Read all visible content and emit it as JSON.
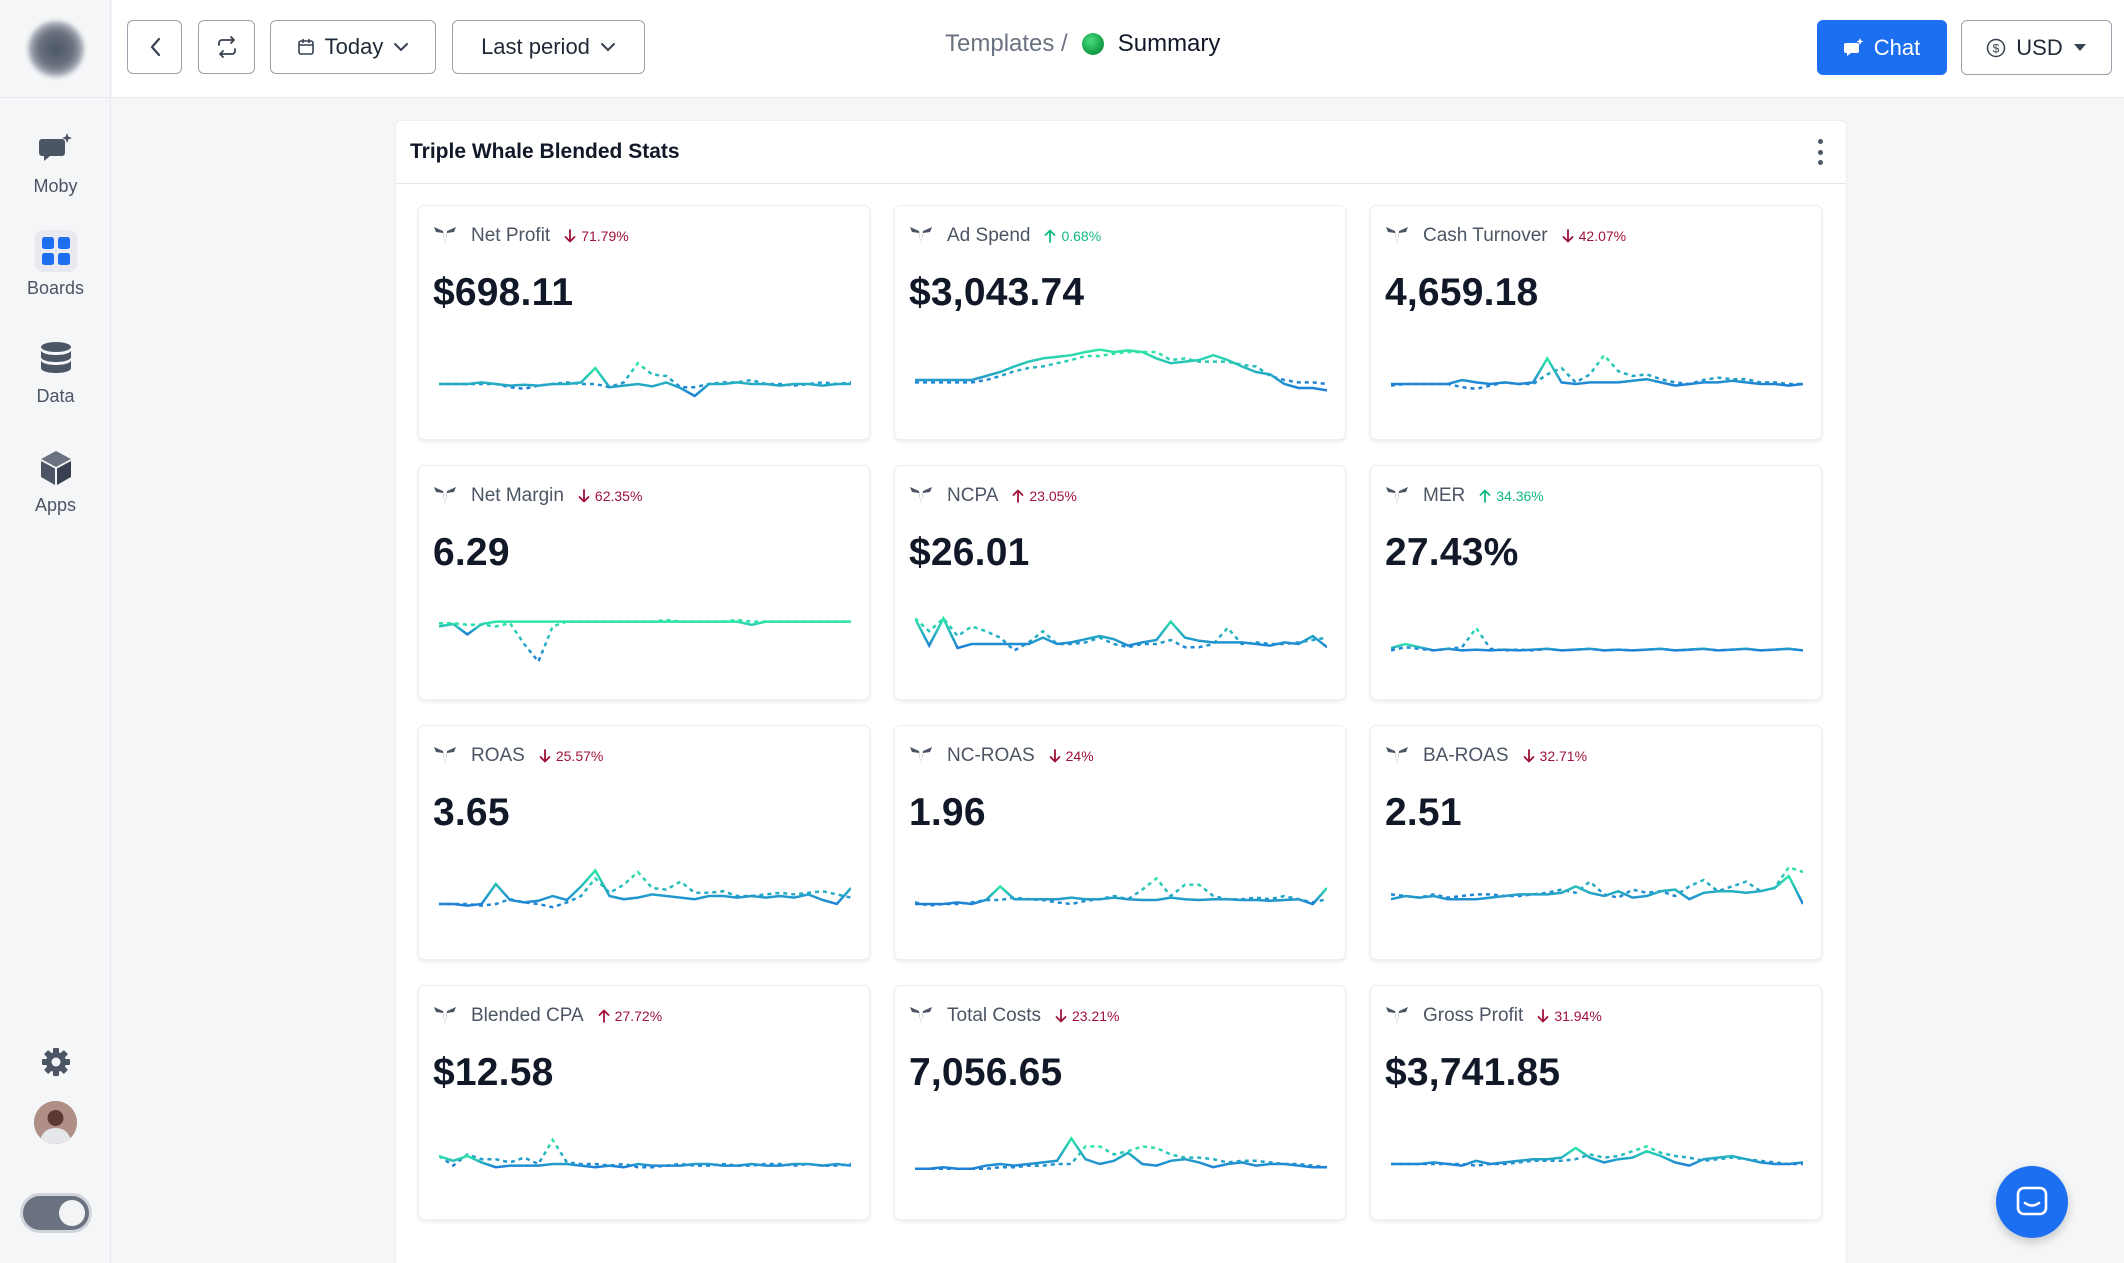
{
  "sidebar": {
    "items": [
      {
        "label": "Moby",
        "icon": "chat-sparkle-icon"
      },
      {
        "label": "Boards",
        "icon": "grid-icon"
      },
      {
        "label": "Data",
        "icon": "database-icon"
      },
      {
        "label": "Apps",
        "icon": "cube-icon"
      }
    ],
    "settings_icon": "gear-icon",
    "avatar_icon": "user-avatar"
  },
  "topbar": {
    "date_label": "Today",
    "period_label": "Last period",
    "breadcrumb_parent": "Templates /",
    "breadcrumb_current": "Summary",
    "chat_label": "Chat",
    "currency_label": "USD"
  },
  "panel": {
    "title": "Triple Whale Blended Stats"
  },
  "cards": [
    {
      "label": "Net Profit",
      "delta": "71.79%",
      "direction": "down",
      "tone": "bad",
      "value": "$698.11"
    },
    {
      "label": "Ad Spend",
      "delta": "0.68%",
      "direction": "up",
      "tone": "good",
      "value": "$3,043.74"
    },
    {
      "label": "Cash Turnover",
      "delta": "42.07%",
      "direction": "down",
      "tone": "bad",
      "value": "4,659.18"
    },
    {
      "label": "Net Margin",
      "delta": "62.35%",
      "direction": "down",
      "tone": "bad",
      "value": "6.29"
    },
    {
      "label": "NCPA",
      "delta": "23.05%",
      "direction": "up",
      "tone": "bad",
      "value": "$26.01"
    },
    {
      "label": "MER",
      "delta": "34.36%",
      "direction": "up",
      "tone": "good",
      "value": "27.43%"
    },
    {
      "label": "ROAS",
      "delta": "25.57%",
      "direction": "down",
      "tone": "bad",
      "value": "3.65"
    },
    {
      "label": "NC-ROAS",
      "delta": "24%",
      "direction": "down",
      "tone": "bad",
      "value": "1.96"
    },
    {
      "label": "BA-ROAS",
      "delta": "32.71%",
      "direction": "down",
      "tone": "bad",
      "value": "2.51"
    },
    {
      "label": "Blended CPA",
      "delta": "27.72%",
      "direction": "up",
      "tone": "bad",
      "value": "$12.58"
    },
    {
      "label": "Total Costs",
      "delta": "23.21%",
      "direction": "down",
      "tone": "bad",
      "value": "7,056.65"
    },
    {
      "label": "Gross Profit",
      "delta": "31.94%",
      "direction": "down",
      "tone": "bad",
      "value": "$3,741.85"
    }
  ],
  "colors": {
    "accent": "#1d6ff2",
    "spark_start": "#2ee6a6",
    "spark_end": "#1e7fd8",
    "delta_bad": "#9f1239",
    "delta_good": "#10b981"
  },
  "sparklines": [
    {
      "current": [
        0.5,
        0.5,
        0.5,
        0.52,
        0.5,
        0.48,
        0.49,
        0.48,
        0.5,
        0.5,
        0.52,
        0.7,
        0.46,
        0.48,
        0.5,
        0.47,
        0.52,
        0.45,
        0.35,
        0.5,
        0.5,
        0.52,
        0.5,
        0.5,
        0.48,
        0.5,
        0.5,
        0.48,
        0.5,
        0.5
      ],
      "previous": [
        0.5,
        0.5,
        0.5,
        0.5,
        0.5,
        0.46,
        0.44,
        0.48,
        0.5,
        0.52,
        0.5,
        0.5,
        0.46,
        0.52,
        0.76,
        0.62,
        0.6,
        0.46,
        0.46,
        0.5,
        0.52,
        0.52,
        0.55,
        0.5,
        0.5,
        0.48,
        0.5,
        0.52,
        0.5,
        0.52
      ]
    },
    {
      "current": [
        0.55,
        0.55,
        0.55,
        0.55,
        0.55,
        0.6,
        0.65,
        0.72,
        0.78,
        0.82,
        0.84,
        0.86,
        0.9,
        0.93,
        0.9,
        0.92,
        0.9,
        0.82,
        0.76,
        0.78,
        0.8,
        0.86,
        0.8,
        0.72,
        0.65,
        0.62,
        0.5,
        0.45,
        0.45,
        0.42
      ],
      "previous": [
        0.52,
        0.52,
        0.52,
        0.52,
        0.52,
        0.55,
        0.6,
        0.66,
        0.7,
        0.72,
        0.76,
        0.8,
        0.85,
        0.85,
        0.88,
        0.9,
        0.9,
        0.9,
        0.8,
        0.82,
        0.78,
        0.78,
        0.78,
        0.74,
        0.72,
        0.6,
        0.55,
        0.52,
        0.52,
        0.5
      ]
    },
    {
      "current": [
        0.5,
        0.5,
        0.5,
        0.5,
        0.5,
        0.55,
        0.52,
        0.5,
        0.52,
        0.5,
        0.52,
        0.82,
        0.52,
        0.5,
        0.52,
        0.52,
        0.52,
        0.54,
        0.56,
        0.52,
        0.48,
        0.5,
        0.52,
        0.52,
        0.54,
        0.52,
        0.5,
        0.5,
        0.48,
        0.5
      ],
      "previous": [
        0.48,
        0.5,
        0.5,
        0.5,
        0.5,
        0.46,
        0.44,
        0.48,
        0.52,
        0.5,
        0.5,
        0.62,
        0.7,
        0.52,
        0.62,
        0.86,
        0.66,
        0.6,
        0.62,
        0.56,
        0.52,
        0.5,
        0.55,
        0.58,
        0.56,
        0.56,
        0.52,
        0.52,
        0.5,
        0.5
      ]
    },
    {
      "current": [
        0.72,
        0.75,
        0.62,
        0.75,
        0.78,
        0.78,
        0.78,
        0.78,
        0.78,
        0.78,
        0.78,
        0.78,
        0.78,
        0.78,
        0.78,
        0.78,
        0.78,
        0.78,
        0.78,
        0.78,
        0.78,
        0.78,
        0.74,
        0.78,
        0.78,
        0.78,
        0.78,
        0.78,
        0.78,
        0.78
      ],
      "previous": [
        0.76,
        0.76,
        0.74,
        0.74,
        0.72,
        0.76,
        0.5,
        0.28,
        0.72,
        0.78,
        0.78,
        0.78,
        0.78,
        0.78,
        0.78,
        0.78,
        0.8,
        0.78,
        0.78,
        0.78,
        0.78,
        0.8,
        0.78,
        0.78,
        0.78,
        0.78,
        0.78,
        0.78,
        0.78,
        0.78
      ]
    },
    {
      "current": [
        0.82,
        0.48,
        0.82,
        0.45,
        0.5,
        0.5,
        0.5,
        0.5,
        0.5,
        0.58,
        0.5,
        0.52,
        0.56,
        0.6,
        0.56,
        0.48,
        0.52,
        0.55,
        0.78,
        0.58,
        0.54,
        0.52,
        0.52,
        0.52,
        0.5,
        0.48,
        0.52,
        0.5,
        0.6,
        0.46
      ],
      "previous": [
        0.82,
        0.66,
        0.82,
        0.6,
        0.72,
        0.66,
        0.58,
        0.42,
        0.52,
        0.66,
        0.5,
        0.5,
        0.52,
        0.58,
        0.5,
        0.46,
        0.5,
        0.5,
        0.55,
        0.46,
        0.46,
        0.5,
        0.7,
        0.5,
        0.52,
        0.5,
        0.5,
        0.52,
        0.55,
        0.58
      ]
    },
    {
      "current": [
        0.45,
        0.5,
        0.46,
        0.42,
        0.44,
        0.42,
        0.43,
        0.42,
        0.43,
        0.42,
        0.43,
        0.44,
        0.42,
        0.43,
        0.44,
        0.42,
        0.43,
        0.42,
        0.43,
        0.44,
        0.42,
        0.43,
        0.44,
        0.42,
        0.43,
        0.44,
        0.42,
        0.43,
        0.44,
        0.42
      ],
      "previous": [
        0.42,
        0.46,
        0.44,
        0.42,
        0.44,
        0.46,
        0.7,
        0.44,
        0.42,
        0.43,
        0.42,
        0.44,
        0.42,
        0.43,
        0.44,
        0.42,
        0.43,
        0.42,
        0.43,
        0.44,
        0.42,
        0.43,
        0.44,
        0.42,
        0.43,
        0.44,
        0.42,
        0.43,
        0.44,
        0.42
      ]
    },
    {
      "current": [
        0.5,
        0.5,
        0.48,
        0.5,
        0.75,
        0.55,
        0.52,
        0.54,
        0.6,
        0.55,
        0.72,
        0.92,
        0.6,
        0.56,
        0.58,
        0.62,
        0.6,
        0.58,
        0.56,
        0.6,
        0.6,
        0.58,
        0.6,
        0.58,
        0.6,
        0.58,
        0.62,
        0.55,
        0.5,
        0.7
      ],
      "previous": [
        0.5,
        0.5,
        0.5,
        0.48,
        0.5,
        0.56,
        0.52,
        0.5,
        0.46,
        0.52,
        0.6,
        0.82,
        0.64,
        0.74,
        0.9,
        0.7,
        0.68,
        0.78,
        0.64,
        0.64,
        0.66,
        0.6,
        0.6,
        0.62,
        0.64,
        0.62,
        0.64,
        0.66,
        0.62,
        0.58
      ]
    },
    {
      "current": [
        0.5,
        0.5,
        0.5,
        0.52,
        0.5,
        0.55,
        0.72,
        0.56,
        0.56,
        0.56,
        0.56,
        0.58,
        0.56,
        0.56,
        0.58,
        0.56,
        0.55,
        0.55,
        0.58,
        0.56,
        0.55,
        0.56,
        0.56,
        0.55,
        0.55,
        0.54,
        0.55,
        0.56,
        0.5,
        0.7
      ],
      "previous": [
        0.52,
        0.48,
        0.5,
        0.5,
        0.52,
        0.55,
        0.55,
        0.58,
        0.56,
        0.55,
        0.52,
        0.5,
        0.54,
        0.56,
        0.6,
        0.56,
        0.68,
        0.82,
        0.6,
        0.74,
        0.74,
        0.6,
        0.56,
        0.56,
        0.58,
        0.56,
        0.6,
        0.56,
        0.52,
        0.56
      ]
    },
    {
      "current": [
        0.56,
        0.6,
        0.58,
        0.6,
        0.56,
        0.56,
        0.56,
        0.58,
        0.6,
        0.62,
        0.62,
        0.62,
        0.64,
        0.72,
        0.64,
        0.6,
        0.66,
        0.58,
        0.6,
        0.66,
        0.68,
        0.56,
        0.64,
        0.66,
        0.66,
        0.64,
        0.66,
        0.7,
        0.85,
        0.5
      ],
      "previous": [
        0.62,
        0.6,
        0.58,
        0.62,
        0.58,
        0.6,
        0.62,
        0.62,
        0.6,
        0.6,
        0.62,
        0.64,
        0.68,
        0.64,
        0.78,
        0.62,
        0.58,
        0.68,
        0.64,
        0.66,
        0.6,
        0.72,
        0.8,
        0.66,
        0.72,
        0.78,
        0.66,
        0.7,
        0.96,
        0.9
      ]
    },
    {
      "current": [
        0.6,
        0.54,
        0.6,
        0.52,
        0.46,
        0.48,
        0.48,
        0.48,
        0.5,
        0.5,
        0.48,
        0.46,
        0.48,
        0.46,
        0.5,
        0.48,
        0.48,
        0.48,
        0.5,
        0.5,
        0.48,
        0.48,
        0.5,
        0.48,
        0.48,
        0.5,
        0.5,
        0.48,
        0.5,
        0.48
      ],
      "previous": [
        0.6,
        0.48,
        0.62,
        0.56,
        0.56,
        0.52,
        0.58,
        0.5,
        0.8,
        0.52,
        0.5,
        0.5,
        0.48,
        0.5,
        0.46,
        0.46,
        0.48,
        0.5,
        0.48,
        0.48,
        0.5,
        0.48,
        0.48,
        0.5,
        0.5,
        0.48,
        0.5,
        0.48,
        0.48,
        0.5
      ]
    },
    {
      "current": [
        0.44,
        0.44,
        0.46,
        0.44,
        0.44,
        0.48,
        0.5,
        0.48,
        0.5,
        0.52,
        0.54,
        0.82,
        0.56,
        0.5,
        0.54,
        0.64,
        0.5,
        0.48,
        0.54,
        0.56,
        0.52,
        0.46,
        0.5,
        0.52,
        0.48,
        0.5,
        0.5,
        0.48,
        0.46,
        0.46
      ],
      "previous": [
        0.44,
        0.44,
        0.44,
        0.44,
        0.44,
        0.44,
        0.46,
        0.46,
        0.48,
        0.48,
        0.5,
        0.5,
        0.72,
        0.72,
        0.62,
        0.66,
        0.72,
        0.7,
        0.62,
        0.58,
        0.58,
        0.56,
        0.52,
        0.54,
        0.54,
        0.52,
        0.5,
        0.5,
        0.48,
        0.46
      ]
    },
    {
      "current": [
        0.5,
        0.5,
        0.5,
        0.52,
        0.5,
        0.48,
        0.54,
        0.5,
        0.52,
        0.54,
        0.56,
        0.56,
        0.58,
        0.7,
        0.58,
        0.52,
        0.56,
        0.58,
        0.66,
        0.6,
        0.52,
        0.48,
        0.56,
        0.58,
        0.6,
        0.56,
        0.52,
        0.5,
        0.5,
        0.52
      ],
      "previous": [
        0.5,
        0.5,
        0.5,
        0.5,
        0.5,
        0.5,
        0.48,
        0.5,
        0.5,
        0.52,
        0.54,
        0.54,
        0.54,
        0.56,
        0.62,
        0.58,
        0.6,
        0.66,
        0.72,
        0.64,
        0.6,
        0.58,
        0.54,
        0.56,
        0.58,
        0.56,
        0.54,
        0.52,
        0.5,
        0.5
      ]
    }
  ]
}
